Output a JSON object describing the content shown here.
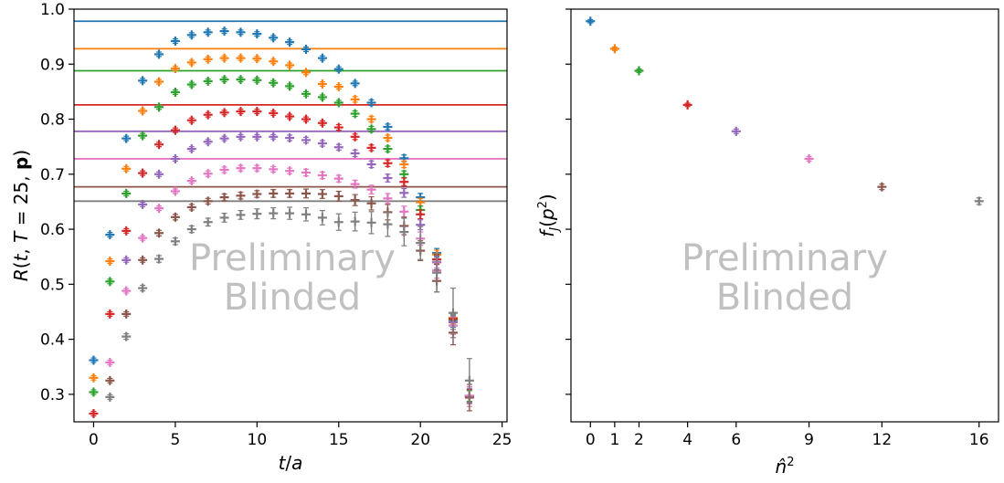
{
  "watermark": {
    "line1": "Preliminary",
    "line2": "Blinded"
  },
  "colors": [
    "#1f77b4",
    "#ff7f0e",
    "#2ca02c",
    "#d62728",
    "#9467bd",
    "#e377c2",
    "#8c564b",
    "#7f7f7f"
  ],
  "chart_data": [
    {
      "type": "scatter",
      "xlabel": "t/a",
      "ylabel": "R(t, T = 25, p)",
      "xlim": [
        -1.2,
        25.3
      ],
      "ylim": [
        0.25,
        1.0
      ],
      "xticks": [
        0,
        5,
        10,
        15,
        20,
        25
      ],
      "yticks": [
        0.3,
        0.4,
        0.5,
        0.6,
        0.7,
        0.8,
        0.9,
        1.0
      ],
      "hlines": [
        0.978,
        0.928,
        0.888,
        0.826,
        0.778,
        0.728,
        0.677,
        0.651
      ],
      "series": [
        {
          "x": [
            0,
            1,
            2,
            3,
            4,
            5,
            6,
            7,
            8,
            9,
            10,
            11,
            12,
            13,
            14,
            15,
            16,
            17,
            18,
            19,
            20,
            21,
            22,
            23
          ],
          "y": [
            0.362,
            0.59,
            0.765,
            0.87,
            0.918,
            0.942,
            0.953,
            0.958,
            0.96,
            0.958,
            0.955,
            0.948,
            0.94,
            0.927,
            0.911,
            0.891,
            0.865,
            0.83,
            0.786,
            0.729,
            0.658,
            0.557,
            0.432,
            0.297
          ],
          "err": [
            0.004,
            0.004,
            0.004,
            0.004,
            0.004,
            0.004,
            0.004,
            0.004,
            0.004,
            0.004,
            0.004,
            0.004,
            0.004,
            0.004,
            0.004,
            0.004,
            0.004,
            0.005,
            0.005,
            0.006,
            0.007,
            0.008,
            0.01,
            0.01
          ]
        },
        {
          "x": [
            0,
            1,
            2,
            3,
            4,
            5,
            6,
            7,
            8,
            9,
            10,
            11,
            12,
            13,
            14,
            15,
            16,
            17,
            18,
            19,
            20,
            21,
            22,
            23
          ],
          "y": [
            0.33,
            0.542,
            0.71,
            0.815,
            0.868,
            0.892,
            0.903,
            0.909,
            0.911,
            0.911,
            0.91,
            0.905,
            0.898,
            0.885,
            0.864,
            0.859,
            0.836,
            0.8,
            0.766,
            0.718,
            0.649,
            0.554,
            0.439,
            0.297
          ],
          "err": [
            0.004,
            0.004,
            0.004,
            0.004,
            0.004,
            0.004,
            0.004,
            0.004,
            0.004,
            0.004,
            0.004,
            0.004,
            0.004,
            0.004,
            0.004,
            0.004,
            0.005,
            0.005,
            0.005,
            0.006,
            0.007,
            0.008,
            0.01,
            0.01
          ]
        },
        {
          "x": [
            0,
            1,
            2,
            3,
            4,
            5,
            6,
            7,
            8,
            9,
            10,
            11,
            12,
            13,
            14,
            15,
            16,
            17,
            18,
            19,
            20,
            21,
            22,
            23
          ],
          "y": [
            0.304,
            0.505,
            0.665,
            0.77,
            0.822,
            0.849,
            0.863,
            0.869,
            0.872,
            0.872,
            0.871,
            0.866,
            0.86,
            0.846,
            0.84,
            0.83,
            0.81,
            0.782,
            0.746,
            0.7,
            0.635,
            0.545,
            0.436,
            0.297
          ],
          "err": [
            0.004,
            0.004,
            0.004,
            0.004,
            0.004,
            0.004,
            0.004,
            0.004,
            0.004,
            0.004,
            0.004,
            0.004,
            0.004,
            0.004,
            0.004,
            0.004,
            0.005,
            0.005,
            0.005,
            0.006,
            0.007,
            0.008,
            0.01,
            0.01
          ]
        },
        {
          "x": [
            0,
            1,
            2,
            3,
            4,
            5,
            6,
            7,
            8,
            9,
            10,
            11,
            12,
            13,
            14,
            15,
            16,
            17,
            18,
            19,
            20,
            21,
            22,
            23
          ],
          "y": [
            0.265,
            0.446,
            0.597,
            0.702,
            0.754,
            0.78,
            0.798,
            0.808,
            0.812,
            0.814,
            0.814,
            0.811,
            0.805,
            0.8,
            0.793,
            0.785,
            0.768,
            0.748,
            0.72,
            0.686,
            0.627,
            0.545,
            0.437,
            0.297
          ],
          "err": [
            0.004,
            0.004,
            0.004,
            0.004,
            0.004,
            0.004,
            0.004,
            0.004,
            0.004,
            0.004,
            0.004,
            0.004,
            0.004,
            0.004,
            0.004,
            0.005,
            0.005,
            0.005,
            0.006,
            0.007,
            0.008,
            0.009,
            0.011,
            0.012
          ]
        },
        {
          "x": [
            2,
            3,
            4,
            5,
            6,
            7,
            8,
            9,
            10,
            11,
            12,
            13,
            14,
            15,
            16,
            17,
            18,
            19,
            20,
            21,
            22,
            23
          ],
          "y": [
            0.544,
            0.645,
            0.7,
            0.728,
            0.746,
            0.759,
            0.765,
            0.768,
            0.768,
            0.768,
            0.766,
            0.762,
            0.756,
            0.749,
            0.738,
            0.718,
            0.693,
            0.666,
            0.608,
            0.54,
            0.431,
            0.297
          ],
          "err": [
            0.004,
            0.004,
            0.004,
            0.004,
            0.004,
            0.004,
            0.004,
            0.004,
            0.004,
            0.004,
            0.005,
            0.005,
            0.005,
            0.005,
            0.006,
            0.006,
            0.007,
            0.008,
            0.009,
            0.011,
            0.013,
            0.014
          ]
        },
        {
          "x": [
            1,
            2,
            3,
            4,
            5,
            6,
            7,
            8,
            9,
            10,
            11,
            12,
            13,
            14,
            15,
            16,
            17,
            18,
            19,
            20,
            21,
            22,
            23
          ],
          "y": [
            0.358,
            0.488,
            0.584,
            0.638,
            0.669,
            0.688,
            0.701,
            0.708,
            0.711,
            0.711,
            0.709,
            0.706,
            0.703,
            0.698,
            0.692,
            0.682,
            0.672,
            0.656,
            0.632,
            0.583,
            0.525,
            0.425,
            0.296
          ],
          "err": [
            0.004,
            0.004,
            0.004,
            0.004,
            0.004,
            0.004,
            0.005,
            0.005,
            0.005,
            0.005,
            0.005,
            0.005,
            0.006,
            0.006,
            0.006,
            0.007,
            0.008,
            0.009,
            0.01,
            0.012,
            0.014,
            0.016,
            0.018
          ]
        },
        {
          "x": [
            1,
            2,
            3,
            4,
            5,
            6,
            7,
            8,
            9,
            10,
            11,
            12,
            13,
            14,
            15,
            16,
            17,
            18,
            19,
            20,
            21,
            22,
            23
          ],
          "y": [
            0.325,
            0.446,
            0.544,
            0.593,
            0.622,
            0.64,
            0.651,
            0.658,
            0.661,
            0.664,
            0.665,
            0.665,
            0.665,
            0.664,
            0.66,
            0.653,
            0.647,
            0.631,
            0.606,
            0.561,
            0.506,
            0.412,
            0.294
          ],
          "err": [
            0.004,
            0.004,
            0.004,
            0.005,
            0.005,
            0.005,
            0.005,
            0.006,
            0.006,
            0.006,
            0.007,
            0.007,
            0.008,
            0.008,
            0.009,
            0.01,
            0.012,
            0.014,
            0.016,
            0.018,
            0.02,
            0.022,
            0.024
          ]
        },
        {
          "x": [
            1,
            2,
            3,
            4,
            5,
            6,
            7,
            8,
            9,
            10,
            11,
            12,
            13,
            14,
            15,
            16,
            17,
            18,
            19,
            20,
            21,
            22,
            23
          ],
          "y": [
            0.295,
            0.405,
            0.493,
            0.546,
            0.578,
            0.6,
            0.613,
            0.621,
            0.626,
            0.628,
            0.629,
            0.629,
            0.627,
            0.621,
            0.613,
            0.614,
            0.612,
            0.609,
            0.595,
            0.575,
            0.521,
            0.448,
            0.325
          ],
          "err": [
            0.004,
            0.005,
            0.005,
            0.006,
            0.006,
            0.006,
            0.007,
            0.008,
            0.008,
            0.009,
            0.01,
            0.011,
            0.012,
            0.013,
            0.015,
            0.017,
            0.02,
            0.022,
            0.025,
            0.03,
            0.035,
            0.045,
            0.04
          ]
        }
      ]
    },
    {
      "type": "scatter",
      "xlabel": "n̂²",
      "ylabel": "f_J(p²)",
      "xlim": [
        -0.8,
        16.8
      ],
      "ylim": [
        0.25,
        1.0
      ],
      "xticks": [
        0,
        1,
        2,
        4,
        6,
        9,
        12,
        16
      ],
      "x": [
        0,
        1,
        2,
        4,
        6,
        9,
        12,
        16
      ],
      "y": [
        0.978,
        0.928,
        0.888,
        0.826,
        0.778,
        0.728,
        0.677,
        0.651
      ],
      "err": [
        0.003,
        0.003,
        0.003,
        0.003,
        0.004,
        0.004,
        0.005,
        0.006
      ]
    }
  ]
}
